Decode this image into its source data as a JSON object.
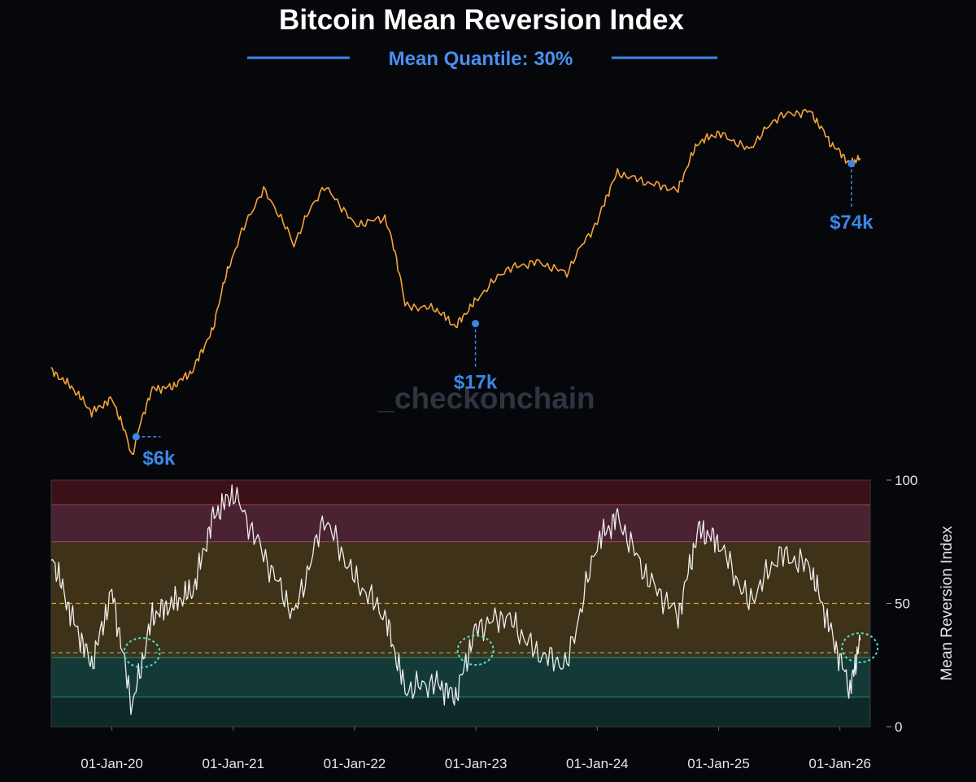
{
  "chart_data": {
    "type": "line",
    "title": "Bitcoin Mean Reversion Index",
    "subtitle": "Mean Quantile: 30%",
    "watermark": "_checkonchain",
    "colors": {
      "background": "#05070b",
      "price_line": "#f5a33a",
      "index_line": "#ffffff",
      "accent_blue": "#3d86e8",
      "subtitle": "#4a8ff0",
      "circle": "#4fe0d0",
      "midline": "#e0a030"
    },
    "x_axis": {
      "ticks": [
        "01-Jan-20",
        "01-Jan-21",
        "01-Jan-22",
        "01-Jan-23",
        "01-Jan-24",
        "01-Jan-25",
        "01-Jan-26"
      ],
      "range": [
        "2019-07",
        "2026-04"
      ]
    },
    "price_panel": {
      "scale": "log",
      "annotations": [
        {
          "label": "$6k",
          "x": "2020-03-13",
          "value": 6000
        },
        {
          "label": "$17k",
          "x": "2022-12-30",
          "value": 17000
        },
        {
          "label": "$74k",
          "x": "2026-02-05",
          "value": 74000
        }
      ],
      "series": {
        "x": [
          "2019-07",
          "2019-09",
          "2019-11",
          "2020-01",
          "2020-03",
          "2020-05",
          "2020-07",
          "2020-09",
          "2020-11",
          "2021-01",
          "2021-04",
          "2021-07",
          "2021-10",
          "2022-01",
          "2022-04",
          "2022-06",
          "2022-09",
          "2022-11",
          "2023-01",
          "2023-04",
          "2023-07",
          "2023-10",
          "2024-01",
          "2024-03",
          "2024-06",
          "2024-09",
          "2024-11",
          "2025-01",
          "2025-04",
          "2025-07",
          "2025-10",
          "2025-12",
          "2026-02",
          "2026-03"
        ],
        "values": [
          11000,
          9500,
          7500,
          8500,
          5000,
          9300,
          9500,
          11000,
          16000,
          32000,
          58000,
          35000,
          60000,
          42000,
          45000,
          20000,
          19500,
          16500,
          21000,
          28000,
          30000,
          27000,
          43000,
          68000,
          62000,
          58000,
          90000,
          98000,
          84000,
          115000,
          120000,
          90000,
          74000,
          78000
        ]
      }
    },
    "index_panel": {
      "ylabel": "Mean Reversion Index",
      "y_ticks": [
        0,
        50,
        100
      ],
      "ylim": [
        0,
        100
      ],
      "bands": [
        {
          "from": 90,
          "to": 100,
          "color": "#3b1018"
        },
        {
          "from": 75,
          "to": 90,
          "color": "#4a2232"
        },
        {
          "from": 28,
          "to": 75,
          "color": "#3e3218"
        },
        {
          "from": 12,
          "to": 28,
          "color": "#133a36"
        },
        {
          "from": 0,
          "to": 12,
          "color": "#0d2a28"
        }
      ],
      "mean_quantile": 30,
      "midline": 50,
      "highlights": [
        {
          "x": "2020-03",
          "value": 30
        },
        {
          "x": "2022-12",
          "value": 31
        },
        {
          "x": "2026-02",
          "value": 32
        }
      ],
      "series": {
        "x": [
          "2019-07",
          "2019-09",
          "2019-11",
          "2020-01",
          "2020-03",
          "2020-05",
          "2020-07",
          "2020-09",
          "2020-11",
          "2021-01",
          "2021-04",
          "2021-07",
          "2021-10",
          "2022-01",
          "2022-04",
          "2022-06",
          "2022-09",
          "2022-11",
          "2023-01",
          "2023-04",
          "2023-07",
          "2023-10",
          "2024-01",
          "2024-03",
          "2024-06",
          "2024-09",
          "2024-11",
          "2025-01",
          "2025-04",
          "2025-07",
          "2025-10",
          "2025-12",
          "2026-02",
          "2026-03"
        ],
        "values": [
          70,
          45,
          25,
          55,
          8,
          45,
          50,
          55,
          85,
          95,
          70,
          45,
          85,
          60,
          45,
          15,
          18,
          12,
          40,
          45,
          30,
          25,
          75,
          85,
          60,
          45,
          80,
          75,
          50,
          70,
          65,
          40,
          15,
          35
        ]
      }
    }
  }
}
